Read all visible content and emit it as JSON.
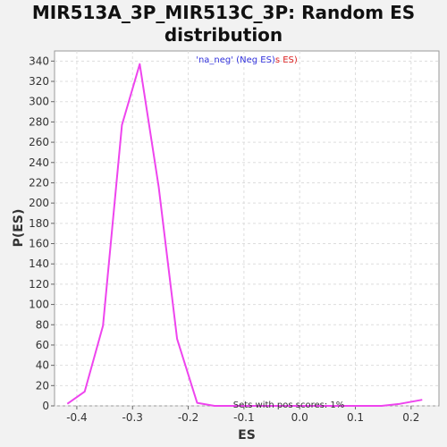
{
  "chart_data": {
    "type": "line",
    "title_lines": [
      "MIR513A_3P_MIR513C_3P: Random ES",
      "distribution"
    ],
    "xlabel": "ES",
    "ylabel": "P(ES)",
    "xlim": [
      -0.44,
      0.25
    ],
    "ylim": [
      0,
      350
    ],
    "xticks": [
      -0.4,
      -0.3,
      -0.2,
      -0.1,
      0.0,
      0.1,
      0.2
    ],
    "xtick_labels": [
      "-0.4",
      "-0.3",
      "-0.2",
      "-0.1",
      "0.0",
      "0.1",
      "0.2"
    ],
    "yticks": [
      0,
      20,
      40,
      60,
      80,
      100,
      120,
      140,
      160,
      180,
      200,
      220,
      240,
      260,
      280,
      300,
      320,
      340
    ],
    "grid": true,
    "legend": {
      "placement": "top-center",
      "part1": "'na_neg' (Neg ES)",
      "part2": "s ES)"
    },
    "annotation": "Sets with pos scores: 1%",
    "series": [
      {
        "color": "#ee44ee",
        "x": [
          -0.417,
          -0.386,
          -0.353,
          -0.319,
          -0.287,
          -0.253,
          -0.22,
          -0.184,
          -0.153,
          -0.118,
          -0.087,
          -0.053,
          -0.02,
          0.014,
          0.047,
          0.08,
          0.113,
          0.147,
          0.18,
          0.22
        ],
        "y": [
          2,
          14,
          79,
          277,
          337,
          216,
          66,
          3,
          0,
          0,
          0,
          0,
          0,
          0,
          0,
          0,
          0,
          0,
          2,
          6
        ]
      }
    ],
    "colors": {
      "legend_blue": "#3333dd",
      "legend_red": "#dd2222",
      "grid": "#dddddd"
    }
  }
}
